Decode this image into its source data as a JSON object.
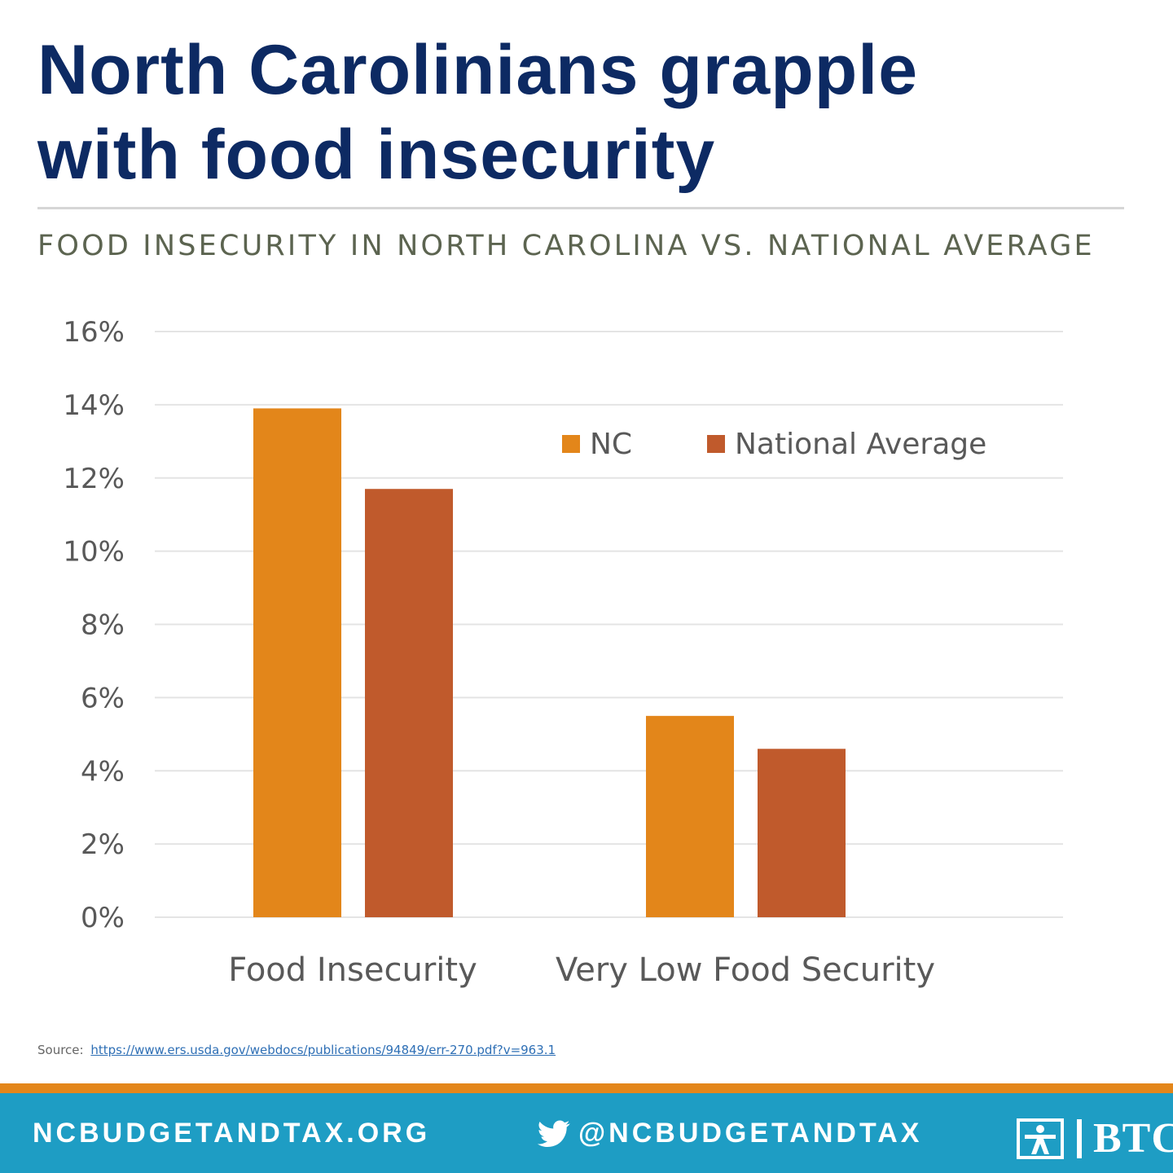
{
  "header": {
    "headline_line1": "North Carolinians grapple",
    "headline_line2": "with food insecurity",
    "subtitle": "FOOD INSECURITY IN NORTH CAROLINA VS. NATIONAL AVERAGE"
  },
  "chart_data": {
    "type": "bar",
    "title": "",
    "xlabel": "",
    "ylabel": "",
    "categories": [
      "Food Insecurity",
      "Very Low Food Security"
    ],
    "series": [
      {
        "name": "NC",
        "values": [
          13.9,
          5.5
        ],
        "color": "#e3861a"
      },
      {
        "name": "National Average",
        "values": [
          11.7,
          4.6
        ],
        "color": "#c05a2c"
      }
    ],
    "ylim": [
      0,
      16
    ],
    "yticks": [
      0,
      2,
      4,
      6,
      8,
      10,
      12,
      14,
      16
    ],
    "ytick_labels": [
      "0%",
      "2%",
      "4%",
      "6%",
      "8%",
      "10%",
      "12%",
      "14%",
      "16%"
    ],
    "grid": true,
    "legend_position": "top-right"
  },
  "source": {
    "label": "Source:",
    "url": "https://www.ers.usda.gov/webdocs/publications/94849/err-270.pdf?v=963.1"
  },
  "footer": {
    "website": "NCBUDGETANDTAX.ORG",
    "twitter": "@NCBUDGETANDTAX",
    "logo_text": "BTC",
    "stripe_color": "#e3861a",
    "bar_color": "#1e9dc4"
  }
}
